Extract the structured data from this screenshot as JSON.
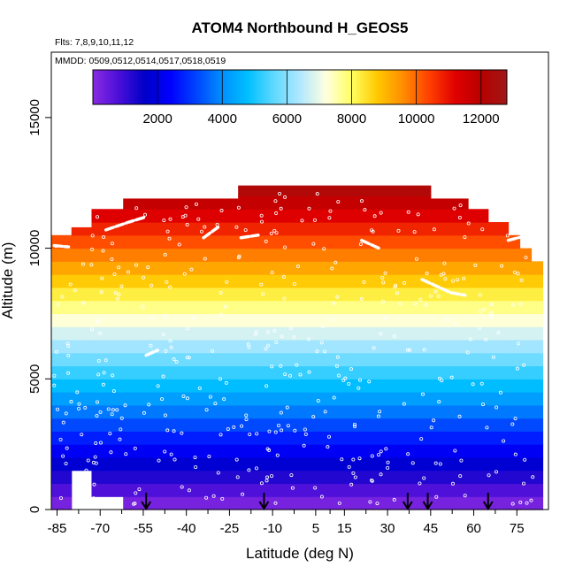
{
  "chart_data": {
    "type": "heatmap",
    "title": "ATOM4 Northbound H_GEOS5",
    "flights_label": "Flts: 7,8,9,10,11,12",
    "dates_label": "MMDD: 0509,0512,0514,0517,0518,0519",
    "xlabel": "Latitude (deg N)",
    "ylabel": "Altitude (m)",
    "xlim": [
      -87,
      86
    ],
    "ylim": [
      0,
      17500
    ],
    "x_ticks": [
      -85,
      -70,
      -55,
      -40,
      -25,
      -10,
      5,
      15,
      30,
      45,
      60,
      75
    ],
    "x_tick_labels": [
      "-85",
      "-70",
      "-55",
      "-40",
      "-25",
      "-10",
      "5",
      "15",
      "30",
      "45",
      "60",
      "75"
    ],
    "y_ticks": [
      0,
      5000,
      10000,
      15000
    ],
    "y_tick_labels": [
      "0",
      "5000",
      "10000",
      "15000"
    ],
    "colorbar": {
      "min": 0,
      "max": 12800,
      "ticks": [
        2000,
        4000,
        6000,
        8000,
        10000,
        12000
      ],
      "tick_labels": [
        "2000",
        "4000",
        "6000",
        "8000",
        "10000",
        "12000"
      ],
      "colors": [
        "#8a2be2",
        "#4b0fd8",
        "#0000c8",
        "#0000ff",
        "#0044ff",
        "#0090ff",
        "#00c0ff",
        "#60d8ff",
        "#b0e8ff",
        "#ffffe0",
        "#ffff60",
        "#ffc800",
        "#ff8c00",
        "#ff4000",
        "#e00000",
        "#b80000",
        "#a01818"
      ]
    },
    "band_height_m": 500,
    "coverage": [
      {
        "lat_min": -87,
        "lat_max": -80,
        "alt_min": 0,
        "alt_max": 10500
      },
      {
        "lat_min": -80,
        "lat_max": -73,
        "alt_min": 1500,
        "alt_max": 10800
      },
      {
        "lat_min": -73,
        "lat_max": -62,
        "alt_min": 500,
        "alt_max": 11500
      },
      {
        "lat_min": -62,
        "lat_max": -54,
        "alt_min": 0,
        "alt_max": 11900
      },
      {
        "lat_min": -54,
        "lat_max": -22,
        "alt_min": 0,
        "alt_max": 11900
      },
      {
        "lat_min": -22,
        "lat_max": 35,
        "alt_min": 0,
        "alt_max": 12400
      },
      {
        "lat_min": 35,
        "lat_max": 45,
        "alt_min": 0,
        "alt_max": 12400
      },
      {
        "lat_min": 45,
        "lat_max": 58,
        "alt_min": 0,
        "alt_max": 11900
      },
      {
        "lat_min": 58,
        "lat_max": 65,
        "alt_min": 0,
        "alt_max": 11500
      },
      {
        "lat_min": 65,
        "lat_max": 72,
        "alt_min": 0,
        "alt_max": 11000
      },
      {
        "lat_min": 72,
        "lat_max": 76,
        "alt_min": 0,
        "alt_max": 10500
      },
      {
        "lat_min": 76,
        "lat_max": 80,
        "alt_min": 0,
        "alt_max": 10000
      },
      {
        "lat_min": 80,
        "lat_max": 84,
        "alt_min": 0,
        "alt_max": 9500
      }
    ],
    "arrow_latitudes": [
      -54,
      -13,
      37,
      44,
      65
    ],
    "flight_track_segments": [
      [
        [
          -68,
          10700
        ],
        [
          -60,
          11000
        ],
        [
          -54,
          11200
        ]
      ],
      [
        [
          -34,
          10400
        ],
        [
          -29,
          10800
        ]
      ],
      [
        [
          -21,
          10400
        ],
        [
          -15,
          10500
        ]
      ],
      [
        [
          21,
          10300
        ],
        [
          27,
          10000
        ]
      ],
      [
        [
          42,
          8800
        ],
        [
          52,
          8300
        ],
        [
          57,
          8200
        ]
      ],
      [
        [
          72,
          10300
        ],
        [
          79,
          10500
        ]
      ],
      [
        [
          -86,
          10100
        ],
        [
          -81,
          10050
        ]
      ],
      [
        [
          -54,
          5900
        ],
        [
          -50,
          6100
        ]
      ]
    ]
  }
}
